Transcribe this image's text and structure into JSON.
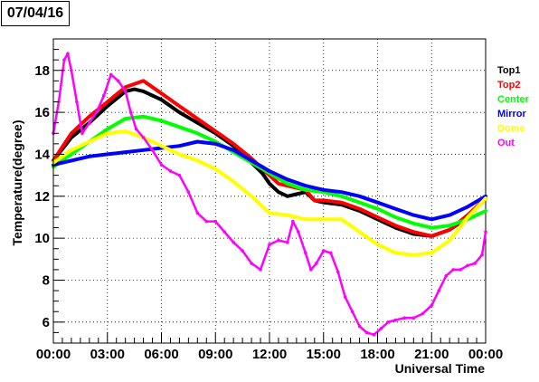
{
  "title": "07/04/16",
  "chart_data": {
    "type": "line",
    "title": "07/04/16",
    "xlabel": "Universal Time",
    "ylabel": "Temperature(degree)",
    "xlim": [
      0,
      24
    ],
    "ylim": [
      5,
      19.5
    ],
    "x_ticks": [
      {
        "value": 0,
        "label": "00:00"
      },
      {
        "value": 3,
        "label": "03:00"
      },
      {
        "value": 6,
        "label": "06:00"
      },
      {
        "value": 9,
        "label": "09:00"
      },
      {
        "value": 12,
        "label": "12:00"
      },
      {
        "value": 15,
        "label": "15:00"
      },
      {
        "value": 18,
        "label": "18:00"
      },
      {
        "value": 21,
        "label": "21:00"
      },
      {
        "value": 24,
        "label": "00:00"
      }
    ],
    "y_ticks": [
      {
        "value": 6,
        "label": "6"
      },
      {
        "value": 8,
        "label": "8"
      },
      {
        "value": 10,
        "label": "10"
      },
      {
        "value": 12,
        "label": "12"
      },
      {
        "value": 14,
        "label": "14"
      },
      {
        "value": 16,
        "label": "16"
      },
      {
        "value": 18,
        "label": "18"
      }
    ],
    "grid": true,
    "legend_position": "top-right",
    "series": [
      {
        "name": "Top1",
        "color": "#000000",
        "points": [
          [
            0,
            13.7
          ],
          [
            1,
            14.8
          ],
          [
            2,
            15.5
          ],
          [
            3,
            16.3
          ],
          [
            4,
            17.0
          ],
          [
            4.5,
            17.1
          ],
          [
            5,
            17.0
          ],
          [
            6,
            16.6
          ],
          [
            7,
            16.0
          ],
          [
            8,
            15.5
          ],
          [
            9,
            15.0
          ],
          [
            10,
            14.4
          ],
          [
            11,
            13.6
          ],
          [
            11.6,
            13.1
          ],
          [
            12,
            12.6
          ],
          [
            12.5,
            12.2
          ],
          [
            13,
            12.0
          ],
          [
            13.5,
            12.1
          ],
          [
            14,
            12.2
          ],
          [
            14.5,
            11.8
          ],
          [
            15,
            11.7
          ],
          [
            16,
            11.6
          ],
          [
            17,
            11.3
          ],
          [
            18,
            10.9
          ],
          [
            19,
            10.5
          ],
          [
            20,
            10.2
          ],
          [
            21,
            10.1
          ],
          [
            22,
            10.4
          ],
          [
            23,
            11.0
          ],
          [
            24,
            11.9
          ]
        ]
      },
      {
        "name": "Top2",
        "color": "#ff0000",
        "points": [
          [
            0,
            13.7
          ],
          [
            1,
            15.0
          ],
          [
            2,
            15.8
          ],
          [
            3,
            16.5
          ],
          [
            4,
            17.2
          ],
          [
            5,
            17.5
          ],
          [
            6,
            16.9
          ],
          [
            7,
            16.3
          ],
          [
            8,
            15.7
          ],
          [
            9,
            15.1
          ],
          [
            10,
            14.5
          ],
          [
            11,
            13.8
          ],
          [
            12,
            13.0
          ],
          [
            12.5,
            12.6
          ],
          [
            13,
            12.5
          ],
          [
            13.5,
            12.4
          ],
          [
            14,
            12.3
          ],
          [
            14.5,
            11.8
          ],
          [
            15,
            11.8
          ],
          [
            16,
            11.7
          ],
          [
            17,
            11.4
          ],
          [
            18,
            11.0
          ],
          [
            19,
            10.6
          ],
          [
            20,
            10.3
          ],
          [
            21,
            10.1
          ],
          [
            22,
            10.4
          ],
          [
            23,
            11.1
          ],
          [
            24,
            11.9
          ]
        ]
      },
      {
        "name": "Center",
        "color": "#00ff00",
        "points": [
          [
            0,
            13.4
          ],
          [
            1,
            14.0
          ],
          [
            2,
            14.6
          ],
          [
            3,
            15.2
          ],
          [
            4,
            15.7
          ],
          [
            5,
            15.8
          ],
          [
            6,
            15.6
          ],
          [
            7,
            15.3
          ],
          [
            8,
            15.0
          ],
          [
            9,
            14.6
          ],
          [
            10,
            14.1
          ],
          [
            11,
            13.6
          ],
          [
            12,
            13.1
          ],
          [
            13,
            12.6
          ],
          [
            14,
            12.3
          ],
          [
            15,
            12.2
          ],
          [
            16,
            12.0
          ],
          [
            17,
            11.7
          ],
          [
            18,
            11.4
          ],
          [
            19,
            11.0
          ],
          [
            20,
            10.7
          ],
          [
            21,
            10.5
          ],
          [
            22,
            10.6
          ],
          [
            23,
            10.9
          ],
          [
            24,
            11.3
          ]
        ]
      },
      {
        "name": "Mirror",
        "color": "#0000ff",
        "points": [
          [
            0,
            13.5
          ],
          [
            1,
            13.7
          ],
          [
            2,
            13.9
          ],
          [
            3,
            14.0
          ],
          [
            4,
            14.1
          ],
          [
            5,
            14.2
          ],
          [
            6,
            14.3
          ],
          [
            7,
            14.4
          ],
          [
            8,
            14.6
          ],
          [
            9,
            14.5
          ],
          [
            10,
            14.2
          ],
          [
            11,
            13.7
          ],
          [
            12,
            13.2
          ],
          [
            13,
            12.8
          ],
          [
            14,
            12.5
          ],
          [
            15,
            12.3
          ],
          [
            16,
            12.2
          ],
          [
            17,
            12.0
          ],
          [
            18,
            11.7
          ],
          [
            19,
            11.4
          ],
          [
            20,
            11.1
          ],
          [
            21,
            10.9
          ],
          [
            22,
            11.1
          ],
          [
            23,
            11.5
          ],
          [
            24,
            12.0
          ]
        ]
      },
      {
        "name": "Dome",
        "color": "#ffff00",
        "points": [
          [
            0,
            13.6
          ],
          [
            1,
            14.2
          ],
          [
            2,
            14.6
          ],
          [
            3,
            15.0
          ],
          [
            4,
            15.1
          ],
          [
            5,
            14.8
          ],
          [
            6,
            14.4
          ],
          [
            7,
            14.0
          ],
          [
            8,
            13.7
          ],
          [
            9,
            13.3
          ],
          [
            10,
            12.7
          ],
          [
            11,
            12.0
          ],
          [
            11.5,
            11.6
          ],
          [
            12,
            11.2
          ],
          [
            13,
            11.1
          ],
          [
            14,
            10.9
          ],
          [
            15,
            10.9
          ],
          [
            16,
            10.9
          ],
          [
            17,
            10.3
          ],
          [
            18,
            9.7
          ],
          [
            19,
            9.3
          ],
          [
            20,
            9.2
          ],
          [
            21,
            9.3
          ],
          [
            22,
            9.9
          ],
          [
            23,
            11.0
          ],
          [
            24,
            11.9
          ]
        ]
      },
      {
        "name": "Out",
        "color": "#ff00ff",
        "points": [
          [
            0,
            15.0
          ],
          [
            0.3,
            16.5
          ],
          [
            0.6,
            18.5
          ],
          [
            0.8,
            18.8
          ],
          [
            1.0,
            18.0
          ],
          [
            1.3,
            16.5
          ],
          [
            1.6,
            15.0
          ],
          [
            2.0,
            15.5
          ],
          [
            2.4,
            16.0
          ],
          [
            2.8,
            16.8
          ],
          [
            3.2,
            17.8
          ],
          [
            3.6,
            17.5
          ],
          [
            4.0,
            17.0
          ],
          [
            4.3,
            16.0
          ],
          [
            4.6,
            15.2
          ],
          [
            5.0,
            14.8
          ],
          [
            5.5,
            14.2
          ],
          [
            6.0,
            13.5
          ],
          [
            6.5,
            13.2
          ],
          [
            7.0,
            13.0
          ],
          [
            7.5,
            12.2
          ],
          [
            8.0,
            11.2
          ],
          [
            8.5,
            10.8
          ],
          [
            9.0,
            10.8
          ],
          [
            9.5,
            10.3
          ],
          [
            10.0,
            9.8
          ],
          [
            10.5,
            9.4
          ],
          [
            11.0,
            8.8
          ],
          [
            11.5,
            8.5
          ],
          [
            12.0,
            9.7
          ],
          [
            12.5,
            9.9
          ],
          [
            13.0,
            9.8
          ],
          [
            13.3,
            10.8
          ],
          [
            13.6,
            10.3
          ],
          [
            14.0,
            9.3
          ],
          [
            14.3,
            8.5
          ],
          [
            14.6,
            8.8
          ],
          [
            15.0,
            9.4
          ],
          [
            15.4,
            9.3
          ],
          [
            15.8,
            8.4
          ],
          [
            16.2,
            7.2
          ],
          [
            16.6,
            6.5
          ],
          [
            17.0,
            5.8
          ],
          [
            17.4,
            5.5
          ],
          [
            17.8,
            5.4
          ],
          [
            18.2,
            5.7
          ],
          [
            18.6,
            6.0
          ],
          [
            19.0,
            6.1
          ],
          [
            19.5,
            6.2
          ],
          [
            20.0,
            6.2
          ],
          [
            20.5,
            6.4
          ],
          [
            21.0,
            6.8
          ],
          [
            21.4,
            7.5
          ],
          [
            21.8,
            8.2
          ],
          [
            22.2,
            8.5
          ],
          [
            22.6,
            8.5
          ],
          [
            23.0,
            8.7
          ],
          [
            23.4,
            8.8
          ],
          [
            23.8,
            9.2
          ],
          [
            24.0,
            10.3
          ]
        ]
      }
    ]
  }
}
